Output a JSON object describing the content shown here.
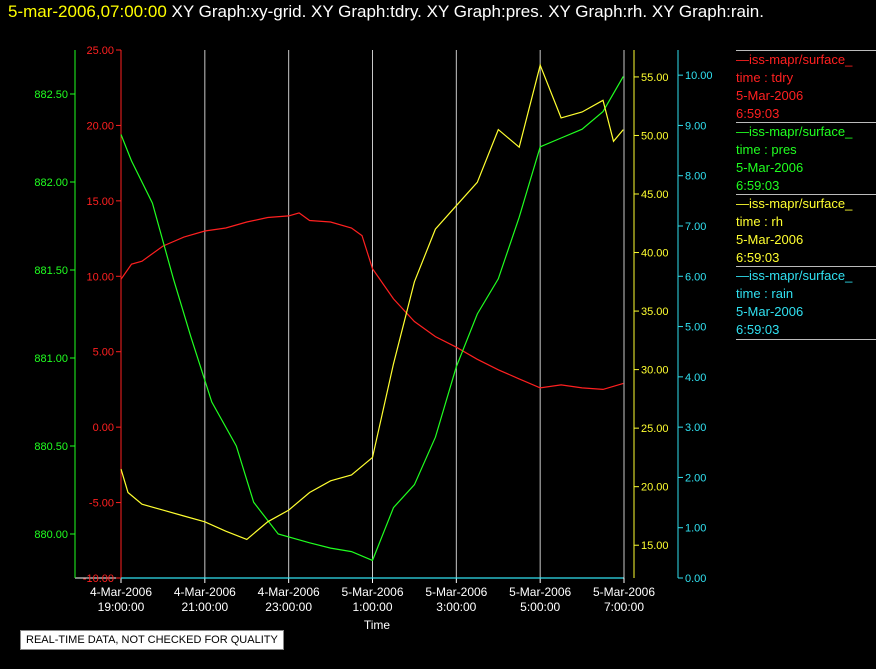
{
  "header": {
    "timestamp": "5-mar-2006,07:00:00",
    "graphs": "XY Graph:xy-grid.  XY Graph:tdry.  XY Graph:pres.  XY Graph:rh.  XY Graph:rain."
  },
  "footer": {
    "quality_note": "REAL-TIME DATA, NOT CHECKED FOR QUALITY"
  },
  "legend": [
    {
      "source": "—iss-mapr/surface_",
      "field": "time : tdry",
      "date": "5-Mar-2006",
      "time": "6:59:03",
      "color": "#ff2020"
    },
    {
      "source": "—iss-mapr/surface_",
      "field": "time : pres",
      "date": "5-Mar-2006",
      "time": "6:59:03",
      "color": "#20ff20"
    },
    {
      "source": "—iss-mapr/surface_",
      "field": "time : rh",
      "date": "5-Mar-2006",
      "time": "6:59:03",
      "color": "#ffff30"
    },
    {
      "source": "—iss-mapr/surface_",
      "field": "time : rain",
      "date": "5-Mar-2006",
      "time": "6:59:03",
      "color": "#30e0f0"
    }
  ],
  "chart_data": {
    "type": "line",
    "xlabel": "Time",
    "x_ticks": [
      {
        "date": "4-Mar-2006",
        "time": "19:00:00"
      },
      {
        "date": "4-Mar-2006",
        "time": "21:00:00"
      },
      {
        "date": "4-Mar-2006",
        "time": "23:00:00"
      },
      {
        "date": "5-Mar-2006",
        "time": "1:00:00"
      },
      {
        "date": "5-Mar-2006",
        "time": "3:00:00"
      },
      {
        "date": "5-Mar-2006",
        "time": "5:00:00"
      },
      {
        "date": "5-Mar-2006",
        "time": "7:00:00"
      }
    ],
    "xlim": [
      "4-Mar-2006 19:00",
      "5-Mar-2006 7:00"
    ],
    "grid": "vertical",
    "axes": {
      "pres": {
        "color": "#20ff20",
        "ylim": [
          879.75,
          882.75
        ],
        "ticks": [
          "880.00",
          "880.50",
          "881.00",
          "881.50",
          "882.00",
          "882.50"
        ]
      },
      "tdry": {
        "color": "#ff2020",
        "ylim": [
          -10,
          25
        ],
        "ticks": [
          "-10.00",
          "-5.00",
          "0.00",
          "5.00",
          "10.00",
          "15.00",
          "20.00",
          "25.00"
        ]
      },
      "rh": {
        "color": "#ffff30",
        "ylim": [
          12.2,
          57.3
        ],
        "ticks": [
          "15.00",
          "20.00",
          "25.00",
          "30.00",
          "35.00",
          "40.00",
          "45.00",
          "50.00",
          "55.00"
        ]
      },
      "rain": {
        "color": "#30e0f0",
        "ylim": [
          0,
          10.5
        ],
        "ticks": [
          "0.00",
          "1.00",
          "2.00",
          "3.00",
          "4.00",
          "5.00",
          "6.00",
          "7.00",
          "8.00",
          "9.00",
          "10.00"
        ]
      }
    },
    "series": [
      {
        "name": "time : tdry",
        "axis": "tdry",
        "color": "#ff2020",
        "x": [
          "4-Mar-2006 19:00",
          "4-Mar-2006 19:15",
          "4-Mar-2006 19:30",
          "4-Mar-2006 20:00",
          "4-Mar-2006 20:30",
          "4-Mar-2006 21:00",
          "4-Mar-2006 21:30",
          "4-Mar-2006 22:00",
          "4-Mar-2006 22:30",
          "4-Mar-2006 23:00",
          "4-Mar-2006 23:15",
          "4-Mar-2006 23:30",
          "5-Mar-2006 0:00",
          "5-Mar-2006 0:30",
          "5-Mar-2006 0:45",
          "5-Mar-2006 1:00",
          "5-Mar-2006 1:30",
          "5-Mar-2006 2:00",
          "5-Mar-2006 2:30",
          "5-Mar-2006 3:00",
          "5-Mar-2006 3:30",
          "5-Mar-2006 4:00",
          "5-Mar-2006 4:30",
          "5-Mar-2006 5:00",
          "5-Mar-2006 5:30",
          "5-Mar-2006 6:00",
          "5-Mar-2006 6:30",
          "5-Mar-2006 6:59"
        ],
        "values": [
          9.8,
          10.8,
          11.0,
          12.0,
          12.6,
          13.0,
          13.2,
          13.6,
          13.9,
          14.0,
          14.2,
          13.7,
          13.6,
          13.2,
          12.7,
          10.5,
          8.5,
          7.0,
          6.0,
          5.3,
          4.5,
          3.8,
          3.2,
          2.6,
          2.8,
          2.6,
          2.5,
          2.9
        ]
      },
      {
        "name": "time : pres",
        "axis": "pres",
        "color": "#20ff20",
        "x": [
          "4-Mar-2006 19:00",
          "4-Mar-2006 19:15",
          "4-Mar-2006 19:45",
          "4-Mar-2006 20:15",
          "4-Mar-2006 20:40",
          "4-Mar-2006 21:10",
          "4-Mar-2006 21:45",
          "4-Mar-2006 22:10",
          "4-Mar-2006 22:45",
          "4-Mar-2006 23:30",
          "5-Mar-2006 0:00",
          "5-Mar-2006 0:30",
          "5-Mar-2006 1:00",
          "5-Mar-2006 1:30",
          "5-Mar-2006 2:00",
          "5-Mar-2006 2:30",
          "5-Mar-2006 3:00",
          "5-Mar-2006 3:30",
          "5-Mar-2006 4:00",
          "5-Mar-2006 4:30",
          "5-Mar-2006 5:00",
          "5-Mar-2006 5:30",
          "5-Mar-2006 6:00",
          "5-Mar-2006 6:30",
          "5-Mar-2006 6:59"
        ],
        "values": [
          882.27,
          882.12,
          881.88,
          881.45,
          881.12,
          880.75,
          880.5,
          880.18,
          880.0,
          879.95,
          879.92,
          879.9,
          879.85,
          880.15,
          880.28,
          880.55,
          880.95,
          881.25,
          881.45,
          881.8,
          882.2,
          882.25,
          882.3,
          882.4,
          882.6
        ]
      },
      {
        "name": "time : rh",
        "axis": "rh",
        "color": "#ffff30",
        "x": [
          "4-Mar-2006 19:00",
          "4-Mar-2006 19:10",
          "4-Mar-2006 19:30",
          "4-Mar-2006 20:00",
          "4-Mar-2006 20:30",
          "4-Mar-2006 21:00",
          "4-Mar-2006 21:30",
          "4-Mar-2006 22:00",
          "4-Mar-2006 22:30",
          "4-Mar-2006 23:00",
          "4-Mar-2006 23:30",
          "5-Mar-2006 0:00",
          "5-Mar-2006 0:30",
          "5-Mar-2006 1:00",
          "5-Mar-2006 1:30",
          "5-Mar-2006 2:00",
          "5-Mar-2006 2:30",
          "5-Mar-2006 3:00",
          "5-Mar-2006 3:30",
          "5-Mar-2006 4:00",
          "5-Mar-2006 4:30",
          "5-Mar-2006 5:00",
          "5-Mar-2006 5:30",
          "5-Mar-2006 6:00",
          "5-Mar-2006 6:30",
          "5-Mar-2006 6:45",
          "5-Mar-2006 6:59"
        ],
        "values": [
          21.5,
          19.5,
          18.5,
          18.0,
          17.5,
          17.0,
          16.2,
          15.5,
          17.0,
          18.0,
          19.5,
          20.5,
          21.0,
          22.5,
          30.5,
          37.5,
          42.0,
          44.0,
          46.0,
          50.5,
          49.0,
          56.0,
          51.5,
          52.0,
          53.0,
          49.5,
          50.5
        ]
      },
      {
        "name": "time : rain",
        "axis": "rain",
        "color": "#30e0f0",
        "x": [
          "4-Mar-2006 19:00",
          "5-Mar-2006 6:59"
        ],
        "values": [
          0.0,
          0.0
        ]
      }
    ]
  }
}
